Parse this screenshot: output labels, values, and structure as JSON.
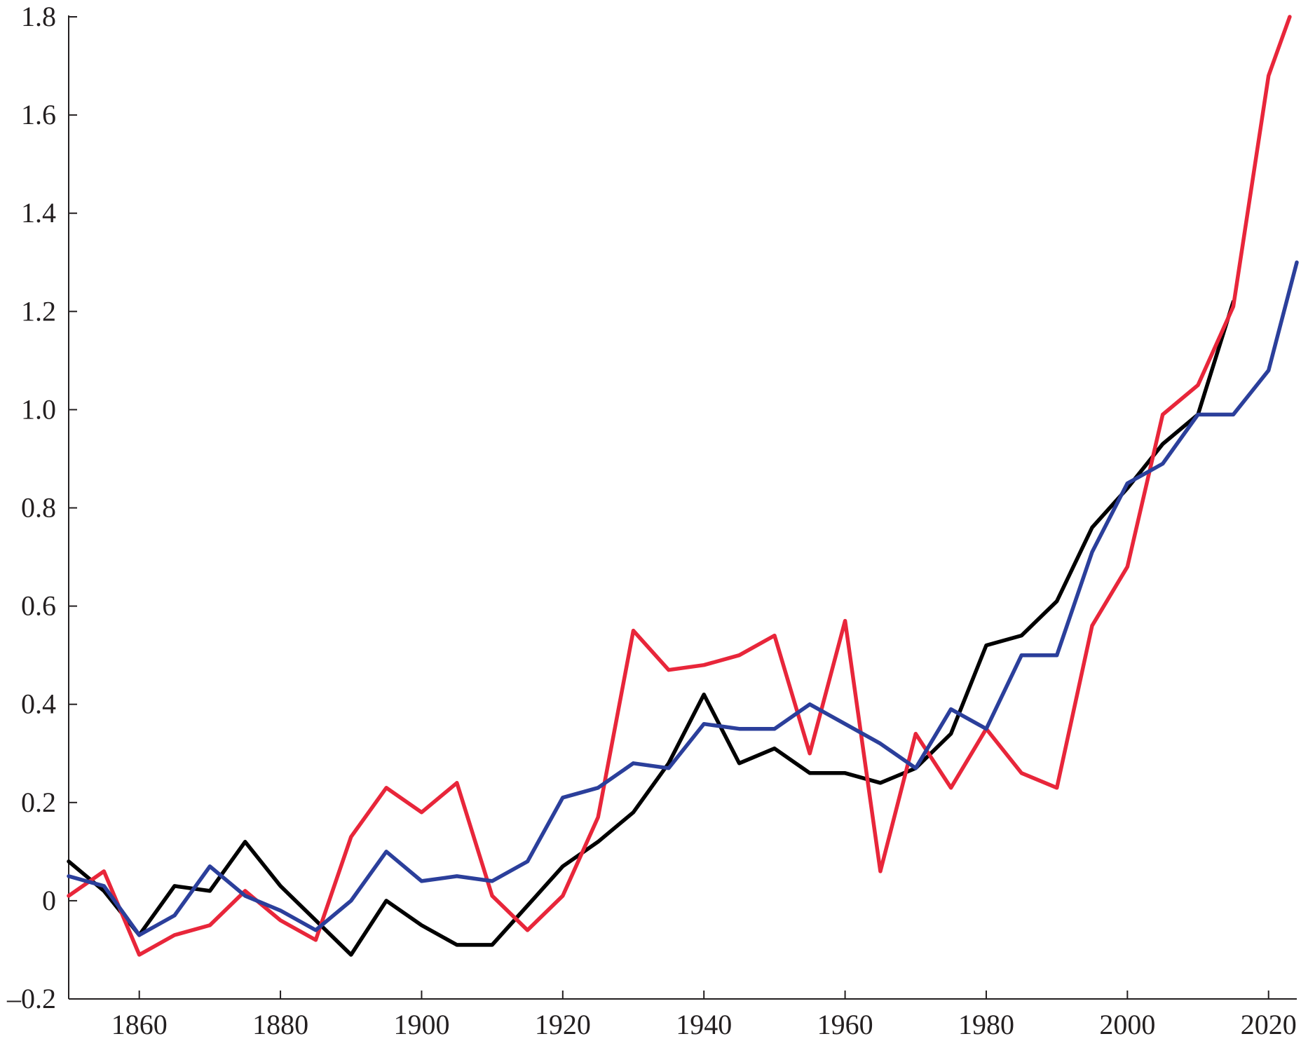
{
  "chart_data": {
    "type": "line",
    "title": "",
    "xlabel": "",
    "ylabel": "",
    "xlim": [
      1850,
      2024
    ],
    "ylim": [
      -0.2,
      1.8
    ],
    "grid": false,
    "legend": "none",
    "x_ticks": [
      1860,
      1880,
      1900,
      1920,
      1940,
      1960,
      1980,
      2000,
      2020
    ],
    "x_tick_labels": [
      "1860",
      "1880",
      "1900",
      "1920",
      "1940",
      "1960",
      "1980",
      "2000",
      "2020"
    ],
    "y_ticks": [
      -0.2,
      0,
      0.2,
      0.4,
      0.6,
      0.8,
      1.0,
      1.2,
      1.4,
      1.6,
      1.8
    ],
    "y_tick_labels": [
      "–0.2",
      "0",
      "0.2",
      "0.4",
      "0.6",
      "0.8",
      "1.0",
      "1.2",
      "1.4",
      "1.6",
      "1.8"
    ],
    "series": [
      {
        "color": "#000000",
        "points": [
          [
            1850,
            0.08
          ],
          [
            1855,
            0.02
          ],
          [
            1860,
            -0.07
          ],
          [
            1865,
            0.03
          ],
          [
            1870,
            0.02
          ],
          [
            1875,
            0.12
          ],
          [
            1880,
            0.03
          ],
          [
            1885,
            -0.04
          ],
          [
            1890,
            -0.11
          ],
          [
            1895,
            0.0
          ],
          [
            1900,
            -0.05
          ],
          [
            1905,
            -0.09
          ],
          [
            1910,
            -0.09
          ],
          [
            1915,
            -0.01
          ],
          [
            1920,
            0.07
          ],
          [
            1925,
            0.12
          ],
          [
            1930,
            0.18
          ],
          [
            1935,
            0.28
          ],
          [
            1940,
            0.42
          ],
          [
            1945,
            0.28
          ],
          [
            1950,
            0.31
          ],
          [
            1955,
            0.26
          ],
          [
            1960,
            0.26
          ],
          [
            1965,
            0.24
          ],
          [
            1970,
            0.27
          ],
          [
            1975,
            0.34
          ],
          [
            1980,
            0.52
          ],
          [
            1985,
            0.54
          ],
          [
            1990,
            0.61
          ],
          [
            1995,
            0.76
          ],
          [
            2000,
            0.84
          ],
          [
            2005,
            0.93
          ],
          [
            2010,
            0.99
          ],
          [
            2015,
            1.22
          ]
        ]
      },
      {
        "color": "#e8263a",
        "points": [
          [
            1850,
            0.01
          ],
          [
            1855,
            0.06
          ],
          [
            1860,
            -0.11
          ],
          [
            1865,
            -0.07
          ],
          [
            1870,
            -0.05
          ],
          [
            1875,
            0.02
          ],
          [
            1880,
            -0.04
          ],
          [
            1885,
            -0.08
          ],
          [
            1890,
            0.13
          ],
          [
            1895,
            0.23
          ],
          [
            1900,
            0.18
          ],
          [
            1905,
            0.24
          ],
          [
            1910,
            0.01
          ],
          [
            1915,
            -0.06
          ],
          [
            1920,
            0.01
          ],
          [
            1925,
            0.17
          ],
          [
            1930,
            0.55
          ],
          [
            1935,
            0.47
          ],
          [
            1940,
            0.48
          ],
          [
            1945,
            0.5
          ],
          [
            1950,
            0.54
          ],
          [
            1955,
            0.3
          ],
          [
            1960,
            0.57
          ],
          [
            1965,
            0.06
          ],
          [
            1970,
            0.34
          ],
          [
            1975,
            0.23
          ],
          [
            1980,
            0.35
          ],
          [
            1985,
            0.26
          ],
          [
            1990,
            0.23
          ],
          [
            1995,
            0.56
          ],
          [
            2000,
            0.68
          ],
          [
            2005,
            0.99
          ],
          [
            2010,
            1.05
          ],
          [
            2015,
            1.21
          ],
          [
            2020,
            1.68
          ],
          [
            2023,
            1.8
          ]
        ]
      },
      {
        "color": "#2b3f9b",
        "points": [
          [
            1850,
            0.05
          ],
          [
            1855,
            0.03
          ],
          [
            1860,
            -0.07
          ],
          [
            1865,
            -0.03
          ],
          [
            1870,
            0.07
          ],
          [
            1875,
            0.01
          ],
          [
            1880,
            -0.02
          ],
          [
            1885,
            -0.06
          ],
          [
            1890,
            0.0
          ],
          [
            1895,
            0.1
          ],
          [
            1900,
            0.04
          ],
          [
            1905,
            0.05
          ],
          [
            1910,
            0.04
          ],
          [
            1915,
            0.08
          ],
          [
            1920,
            0.21
          ],
          [
            1925,
            0.23
          ],
          [
            1930,
            0.28
          ],
          [
            1935,
            0.27
          ],
          [
            1940,
            0.36
          ],
          [
            1945,
            0.35
          ],
          [
            1950,
            0.35
          ],
          [
            1955,
            0.4
          ],
          [
            1960,
            0.36
          ],
          [
            1965,
            0.32
          ],
          [
            1970,
            0.27
          ],
          [
            1975,
            0.39
          ],
          [
            1980,
            0.35
          ],
          [
            1985,
            0.5
          ],
          [
            1990,
            0.5
          ],
          [
            1995,
            0.71
          ],
          [
            2000,
            0.85
          ],
          [
            2005,
            0.89
          ],
          [
            2010,
            0.99
          ],
          [
            2015,
            0.99
          ],
          [
            2020,
            1.08
          ],
          [
            2024,
            1.3
          ]
        ]
      }
    ]
  }
}
